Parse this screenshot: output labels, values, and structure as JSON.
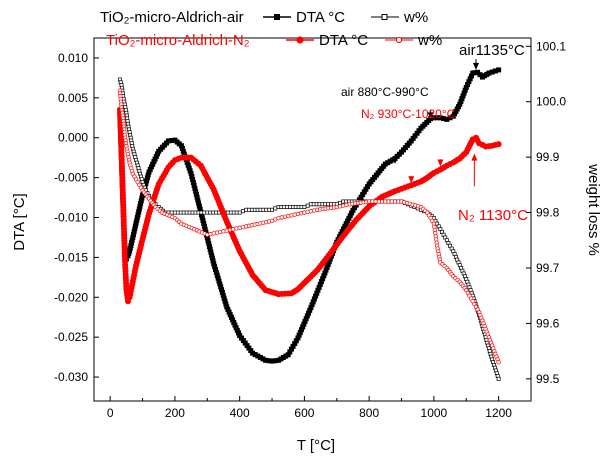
{
  "chart_data": {
    "type": "line",
    "xlabel": "T   [°C]",
    "ylabel_left": "DTA  [°C]",
    "ylabel_right": "weight loss  %",
    "xlim": [
      -50,
      1300
    ],
    "ylim_left": [
      -0.033,
      0.0125
    ],
    "ylim_right": [
      99.46,
      100.115
    ],
    "x_ticks": [
      0,
      200,
      400,
      600,
      800,
      1000,
      1200
    ],
    "x_tick_labels": [
      "0",
      "200",
      "400",
      "600",
      "800",
      "1000",
      "1200"
    ],
    "y_left_ticks": [
      0.01,
      0.005,
      0.0,
      -0.005,
      -0.01,
      -0.015,
      -0.02,
      -0.025,
      -0.03
    ],
    "y_left_tick_labels": [
      "0.010",
      "0.005",
      "0.000",
      "-0.005",
      "-0.010",
      "-0.015",
      "-0.020",
      "-0.025",
      "-0.030"
    ],
    "y_right_ticks": [
      100.1,
      100.0,
      99.9,
      99.8,
      99.7,
      99.6,
      99.5
    ],
    "y_right_tick_labels": [
      "100.1",
      "100.0",
      "99.9",
      "99.8",
      "99.7",
      "99.6",
      "99.5"
    ],
    "colors": {
      "air": "#000000",
      "n2": "#ff0000"
    },
    "legend": [
      {
        "sample": "TiO₂-micro-Aldrich-air",
        "dta": "DTA °C",
        "w": "w%",
        "color": "#000000"
      },
      {
        "sample": "TiO₂-micro-Aldrich-N₂",
        "dta": "DTA °C",
        "w": "w%",
        "color": "#ff0000"
      }
    ],
    "series": [
      {
        "name": "TiO₂-micro-Aldrich-air DTA °C",
        "axis": "left",
        "color": "#000000",
        "marker": "filled-square",
        "x": [
          30,
          35,
          40,
          45,
          50,
          55,
          60,
          70,
          80,
          100,
          120,
          150,
          180,
          200,
          220,
          250,
          280,
          320,
          360,
          400,
          440,
          480,
          500,
          520,
          550,
          580,
          620,
          660,
          700,
          750,
          800,
          850,
          880,
          900,
          930,
          960,
          990,
          1000,
          1020,
          1040,
          1060,
          1080,
          1100,
          1120,
          1135,
          1150,
          1170,
          1200
        ],
        "y": [
          0.003,
          -0.003,
          -0.009,
          -0.0135,
          -0.0152,
          -0.0148,
          -0.0142,
          -0.0125,
          -0.0107,
          -0.0072,
          -0.0043,
          -0.0017,
          -0.0004,
          -0.0003,
          -0.001,
          -0.0045,
          -0.0093,
          -0.0158,
          -0.0212,
          -0.0248,
          -0.027,
          -0.0279,
          -0.028,
          -0.0279,
          -0.0272,
          -0.0251,
          -0.0213,
          -0.0173,
          -0.0131,
          -0.0091,
          -0.0058,
          -0.0033,
          -0.0026,
          -0.0018,
          -0.0004,
          0.0012,
          0.0024,
          0.0025,
          0.0025,
          0.0023,
          0.0027,
          0.0042,
          0.0063,
          0.0081,
          0.0082,
          0.0076,
          0.0081,
          0.0085
        ]
      },
      {
        "name": "TiO₂-micro-Aldrich-air w%",
        "axis": "right",
        "color": "#000000",
        "marker": "open-square",
        "x": [
          30,
          35,
          40,
          45,
          50,
          55,
          60,
          65,
          70,
          80,
          90,
          100,
          110,
          120,
          130,
          140,
          150,
          170,
          200,
          300,
          400,
          420,
          500,
          520,
          600,
          620,
          700,
          720,
          800,
          850,
          900,
          920,
          940,
          960,
          980,
          1000,
          1020,
          1040,
          1060,
          1080,
          1100,
          1120,
          1140,
          1160,
          1180,
          1200
        ],
        "y": [
          100.04,
          100.03,
          100.01,
          99.995,
          99.98,
          99.96,
          99.945,
          99.93,
          99.915,
          99.895,
          99.875,
          99.855,
          99.84,
          99.83,
          99.825,
          99.815,
          99.81,
          99.8,
          99.8,
          99.8,
          99.8,
          99.805,
          99.805,
          99.81,
          99.81,
          99.815,
          99.815,
          99.82,
          99.82,
          99.82,
          99.82,
          99.815,
          99.81,
          99.805,
          99.8,
          99.79,
          99.77,
          99.75,
          99.73,
          99.705,
          99.68,
          99.65,
          99.615,
          99.575,
          99.535,
          99.5
        ]
      },
      {
        "name": "TiO₂-micro-Aldrich-N₂ DTA °C",
        "axis": "left",
        "color": "#ff0000",
        "marker": "filled-circle",
        "x": [
          30,
          35,
          40,
          45,
          50,
          55,
          60,
          70,
          80,
          100,
          120,
          150,
          180,
          200,
          220,
          250,
          280,
          320,
          360,
          400,
          440,
          480,
          520,
          560,
          580,
          600,
          640,
          680,
          720,
          760,
          800,
          840,
          880,
          900,
          920,
          940,
          960,
          980,
          1000,
          1020,
          1040,
          1060,
          1080,
          1100,
          1120,
          1130,
          1140,
          1160,
          1180,
          1200
        ],
        "y": [
          0.0035,
          -0.002,
          -0.008,
          -0.0148,
          -0.019,
          -0.0205,
          -0.02,
          -0.018,
          -0.016,
          -0.0127,
          -0.0095,
          -0.0058,
          -0.0037,
          -0.0028,
          -0.0025,
          -0.0025,
          -0.0035,
          -0.0065,
          -0.0105,
          -0.0142,
          -0.0172,
          -0.0191,
          -0.0196,
          -0.0195,
          -0.019,
          -0.0182,
          -0.0166,
          -0.0145,
          -0.0123,
          -0.0103,
          -0.0086,
          -0.0074,
          -0.0067,
          -0.0064,
          -0.0061,
          -0.0058,
          -0.0055,
          -0.005,
          -0.0044,
          -0.004,
          -0.0035,
          -0.0031,
          -0.0026,
          -0.0018,
          -0.0002,
          0.0,
          -0.0007,
          -0.0011,
          -0.001,
          -0.0008
        ]
      },
      {
        "name": "TiO₂-micro-Aldrich-N₂ w%",
        "axis": "right",
        "color": "#ff0000",
        "marker": "open-circle",
        "x": [
          30,
          35,
          40,
          45,
          50,
          60,
          70,
          80,
          90,
          100,
          120,
          140,
          160,
          200,
          220,
          260,
          300,
          340,
          380,
          420,
          500,
          520,
          560,
          600,
          640,
          700,
          740,
          800,
          850,
          900,
          960,
          980,
          1000,
          1010,
          1020,
          1040,
          1060,
          1080,
          1100,
          1120,
          1140,
          1160,
          1180,
          1200
        ],
        "y": [
          100.02,
          99.99,
          99.97,
          99.94,
          99.92,
          99.89,
          99.87,
          99.86,
          99.85,
          99.84,
          99.825,
          99.81,
          99.8,
          99.79,
          99.78,
          99.77,
          99.76,
          99.765,
          99.77,
          99.775,
          99.785,
          99.79,
          99.795,
          99.8,
          99.805,
          99.81,
          99.815,
          99.82,
          99.82,
          99.82,
          99.81,
          99.8,
          99.78,
          99.74,
          99.71,
          99.7,
          99.685,
          99.675,
          99.66,
          99.64,
          99.62,
          99.59,
          99.56,
          99.53
        ]
      }
    ],
    "annotations": [
      {
        "text": "air 880°C-990°C",
        "color": "#000000"
      },
      {
        "text": "N₂ 930°C-1020°C",
        "color": "#ff0000"
      },
      {
        "text": "air1135°C",
        "color": "#000000"
      },
      {
        "text": "N₂ 1130°C",
        "color": "#ff0000"
      }
    ],
    "arrows": [
      {
        "axis": "left",
        "tip_x": 880,
        "tip_y": -0.0033,
        "tail_dy_frac": -0.027,
        "color": "#000000"
      },
      {
        "axis": "left",
        "tip_x": 990,
        "tip_y": 0.0023,
        "tail_dy_frac": -0.027,
        "color": "#000000"
      },
      {
        "axis": "left",
        "tip_x": 1130,
        "tip_y": 0.0085,
        "tail_dy_frac": -0.03,
        "color": "#000000"
      },
      {
        "axis": "left",
        "tip_x": 930,
        "tip_y": -0.0057,
        "tail_dy_frac": -0.02,
        "color": "#ff0000"
      },
      {
        "axis": "left",
        "tip_x": 1020,
        "tip_y": -0.0036,
        "tail_dy_frac": -0.02,
        "color": "#ff0000"
      },
      {
        "axis": "left",
        "tip_x": 1125,
        "tip_y": -0.002,
        "tail_dy_frac": 0.09,
        "color": "#ff0000"
      }
    ]
  }
}
